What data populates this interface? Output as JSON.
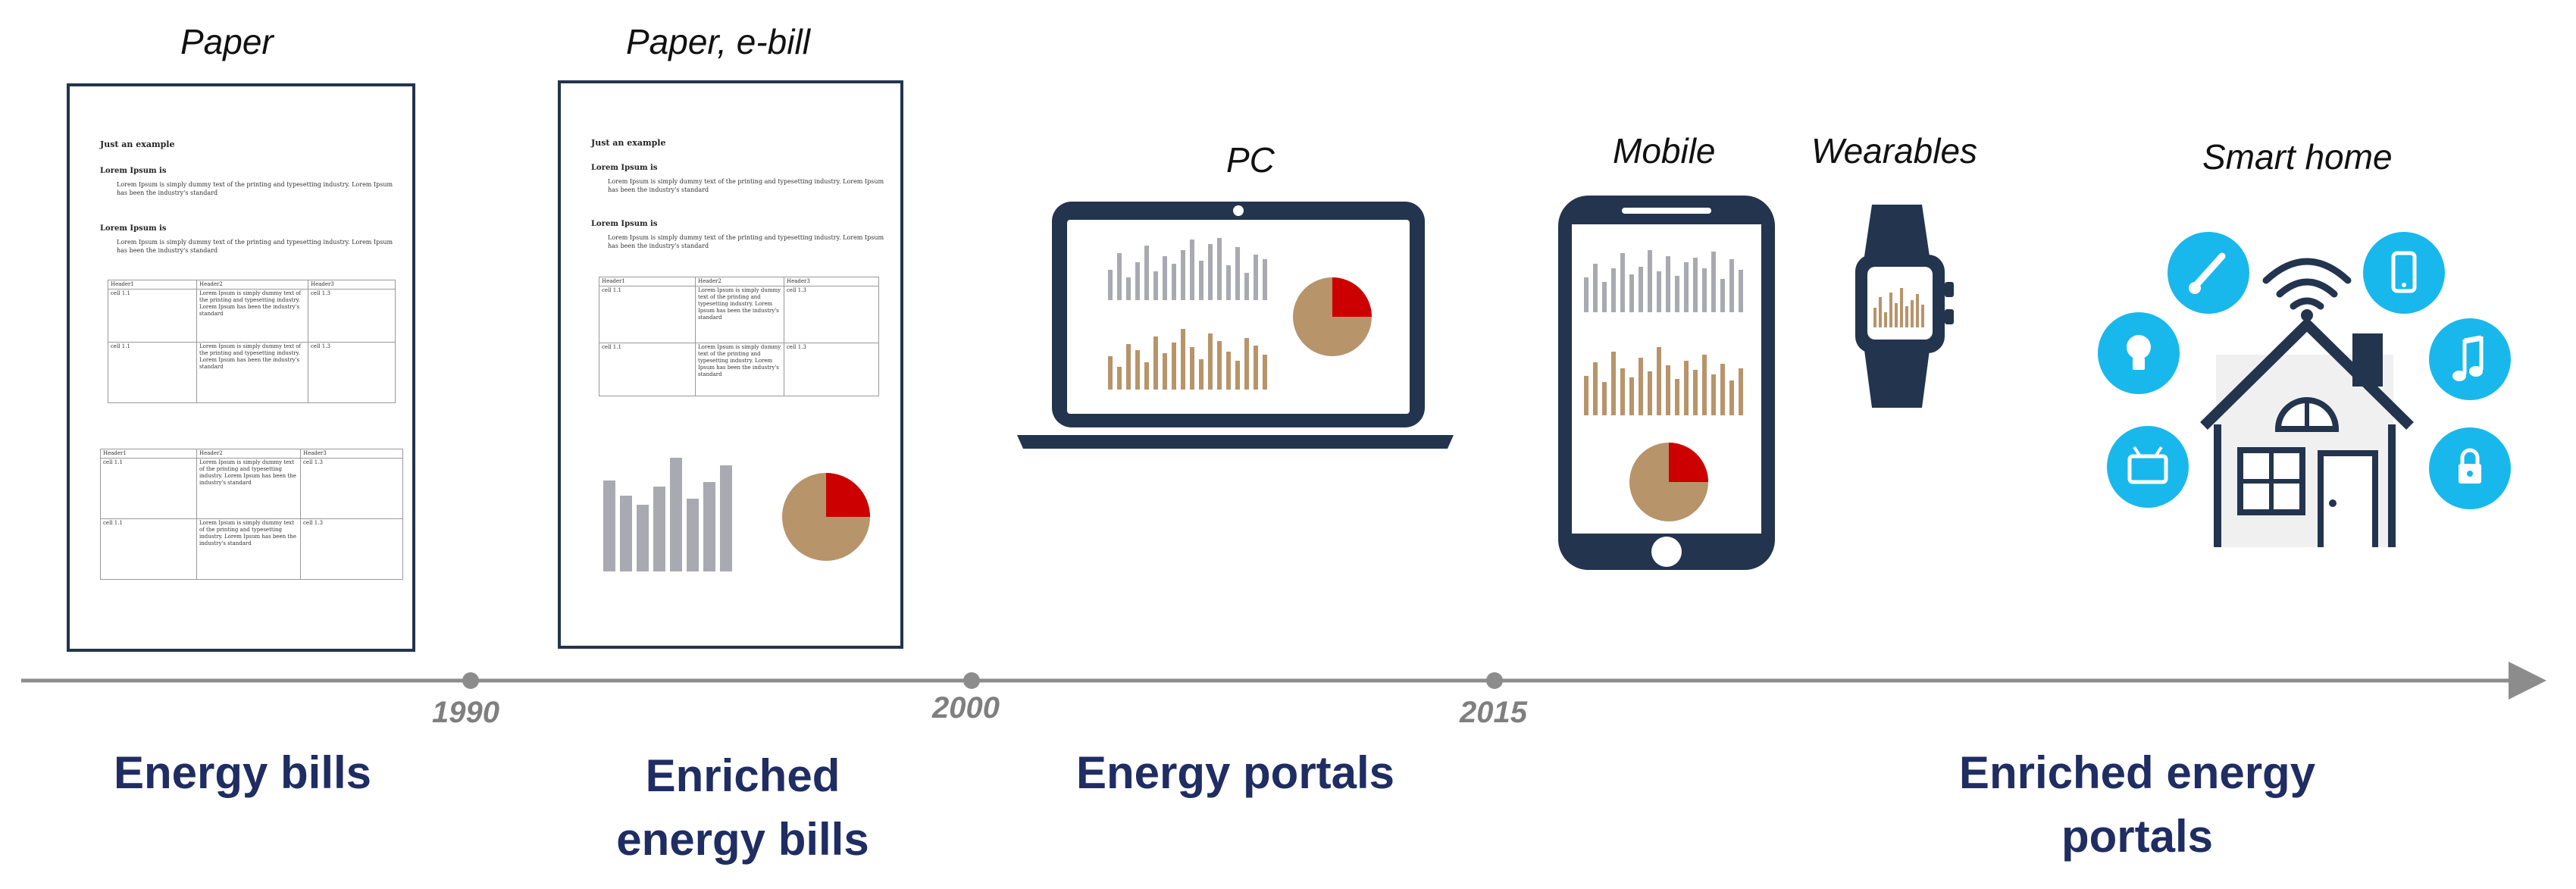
{
  "labels": {
    "paper": "Paper",
    "paper_ebill": "Paper, e-bill",
    "pc": "PC",
    "mobile": "Mobile",
    "wearables": "Wearables",
    "smart_home": "Smart home"
  },
  "years": [
    "1990",
    "2000",
    "2015"
  ],
  "eras": {
    "energy_bills": "Energy bills",
    "enriched_bills_line1": "Enriched",
    "enriched_bills_line2": "energy bills",
    "energy_portals": "Energy portals",
    "enriched_portals_line1": "Enriched energy",
    "enriched_portals_line2": "portals"
  },
  "document": {
    "title": "Just an example",
    "heading": "Lorem Ipsum is",
    "paragraph": "Lorem Ipsum is simply dummy text of the printing and typesetting industry. Lorem Ipsum has been the industry's standard",
    "table_headers": [
      "Header1",
      "Header2",
      "Header3"
    ],
    "cell_a": "cell 1.1",
    "cell_long": "Lorem Ipsum is simply dummy text of the printing and typesetting industry. Lorem Ipsum has been the industry's standard",
    "cell_c": "cell 1.3"
  },
  "colors": {
    "navy": "#23344e",
    "era_text": "#1f2d62",
    "timeline": "#8c8c8c",
    "bar_gray": "#a9aab1",
    "bar_tan": "#b8946a",
    "pie_red": "#cc0000",
    "smart_blue": "#19b8ec"
  },
  "icons": [
    "laptop-icon",
    "smartphone-icon",
    "smartwatch-icon",
    "smart-house-icon",
    "wifi-icon",
    "thermometer-icon",
    "lightbulb-icon",
    "tv-icon",
    "phone-icon",
    "music-note-icon",
    "lock-icon"
  ]
}
